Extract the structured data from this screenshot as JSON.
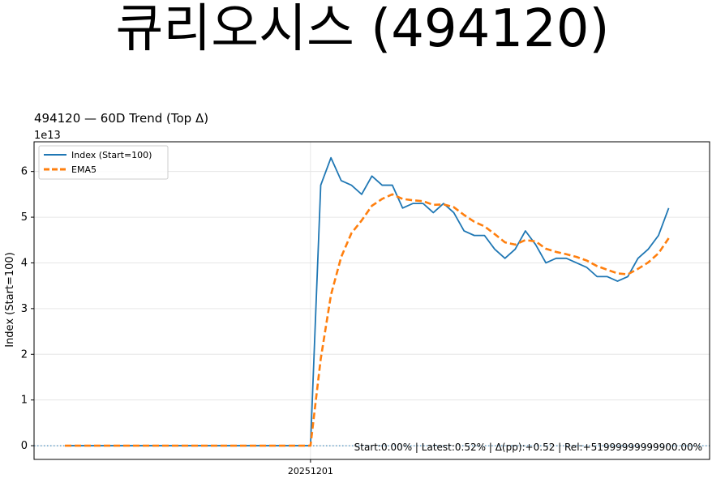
{
  "page_title": "큐리오시스 (494120)",
  "chart_data": {
    "type": "line",
    "title": "494120 — 60D Trend (Top Δ)",
    "ylabel": "Index (Start=100)",
    "xlabel": "",
    "y_scale_label": "1e13",
    "y_scale": 10000000000000.0,
    "ylim": [
      -0.3,
      6.65
    ],
    "yticks": [
      0,
      1,
      2,
      3,
      4,
      5,
      6
    ],
    "x_tick_labels": [
      {
        "index": 24,
        "label": "20251201"
      }
    ],
    "grid": true,
    "legend_position": "top-left",
    "baseline": 0,
    "series": [
      {
        "name": "Index (Start=100)",
        "color": "#1f77b4",
        "style": "solid",
        "values": [
          0,
          0,
          0,
          0,
          0,
          0,
          0,
          0,
          0,
          0,
          0,
          0,
          0,
          0,
          0,
          0,
          0,
          0,
          0,
          0,
          0,
          0,
          0,
          0,
          0,
          5.7,
          6.3,
          5.8,
          5.7,
          5.5,
          5.9,
          5.7,
          5.7,
          5.2,
          5.3,
          5.3,
          5.1,
          5.3,
          5.1,
          4.7,
          4.6,
          4.6,
          4.3,
          4.1,
          4.3,
          4.7,
          4.4,
          4.0,
          4.1,
          4.1,
          4.0,
          3.9,
          3.7,
          3.7,
          3.6,
          3.7,
          4.1,
          4.3,
          4.6,
          5.2
        ]
      },
      {
        "name": "EMA5",
        "color": "#ff7f0e",
        "style": "dashed",
        "values": [
          0,
          0,
          0,
          0,
          0,
          0,
          0,
          0,
          0,
          0,
          0,
          0,
          0,
          0,
          0,
          0,
          0,
          0,
          0,
          0,
          0,
          0,
          0,
          0,
          0,
          1.9,
          3.3,
          4.13,
          4.65,
          4.93,
          5.25,
          5.4,
          5.5,
          5.4,
          5.37,
          5.35,
          5.27,
          5.28,
          5.22,
          5.05,
          4.9,
          4.8,
          4.63,
          4.45,
          4.4,
          4.5,
          4.47,
          4.31,
          4.24,
          4.19,
          4.13,
          4.05,
          3.93,
          3.85,
          3.77,
          3.75,
          3.87,
          4.01,
          4.21,
          4.54
        ]
      }
    ],
    "annotation": "Start:0.00% | Latest:0.52% | Δ(pp):+0.52 | Rel:+51999999999900.00%"
  }
}
